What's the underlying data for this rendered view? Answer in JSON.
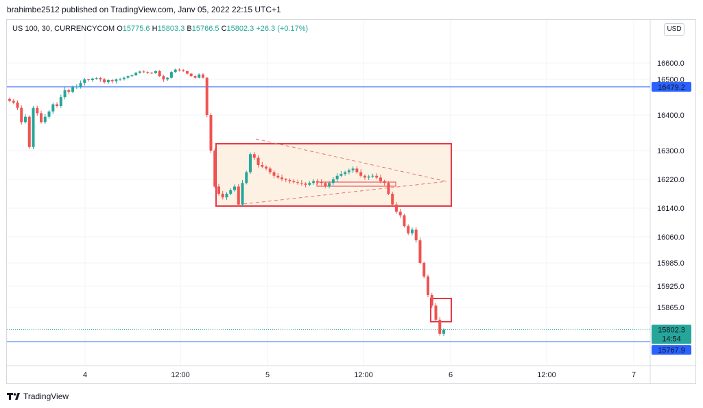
{
  "header": {
    "published": "brahimbe2512 published on TradingView.com, Janv 05, 2022 22:15 UTC+1"
  },
  "legend": {
    "symbol": "US 100, 30, CURRENCYCOM",
    "o_label": "O",
    "o": "15775.6",
    "h_label": "H",
    "h": "15803.3",
    "b_label": "B",
    "b": "15766.5",
    "c_label": "C",
    "c": "15802.3",
    "change": "+26.3 (+0.17%)"
  },
  "currency_button": "USD",
  "footer": {
    "brand": "TradingView"
  },
  "colors": {
    "up": "#26a69a",
    "down": "#ef5350",
    "level_line": "#2962ff",
    "box": "#e53946",
    "box_fill": "#fdf1e3",
    "dashed": "#e57373"
  },
  "chart_data": {
    "type": "candlestick",
    "x_ticks": [
      "4",
      "12:00",
      "5",
      "12:00",
      "6",
      "12:00",
      "7"
    ],
    "y_ticks": [
      "16600.0",
      "16500.0",
      "16400.0",
      "16300.0",
      "16220.0",
      "16140.0",
      "16060.0",
      "15985.0",
      "15925.0",
      "15865.0"
    ],
    "horizontal_lines": [
      {
        "value": 16479.2,
        "label": "16479.2"
      },
      {
        "value": 15767.9,
        "label": "15767.9"
      }
    ],
    "last_price": {
      "value": 15802.3,
      "label": "15802.3",
      "countdown": "14:54"
    },
    "candles_close_approx": [
      16440,
      16435,
      16420,
      16380,
      16395,
      16310,
      16420,
      16405,
      16380,
      16395,
      16410,
      16430,
      16425,
      16450,
      16470,
      16465,
      16478,
      16480,
      16490,
      16500,
      16498,
      16505,
      16508,
      16500,
      16492,
      16498,
      16495,
      16500,
      16502,
      16510,
      16520,
      16525,
      16540,
      16548,
      16545,
      16540,
      16538,
      16550,
      16520,
      16500,
      16510,
      16545,
      16560,
      16555,
      16550,
      16535,
      16520,
      16510,
      16530,
      16510,
      16400,
      16300,
      16200,
      16180,
      16170,
      16180,
      16190,
      16200,
      16150,
      16210,
      16240,
      16290,
      16280,
      16260,
      16255,
      16250,
      16240,
      16230,
      16225,
      16220,
      16218,
      16215,
      16212,
      16210,
      16208,
      16205,
      16210,
      16215,
      16212,
      16210,
      16200,
      16210,
      16220,
      16230,
      16235,
      16240,
      16245,
      16250,
      16240,
      16230,
      16225,
      16228,
      16230,
      16225,
      16215,
      16210,
      16180,
      16150,
      16130,
      16120,
      16090,
      16070,
      16080,
      16050,
      15985,
      15950,
      15900,
      15870,
      15830,
      15790,
      15802
    ]
  }
}
